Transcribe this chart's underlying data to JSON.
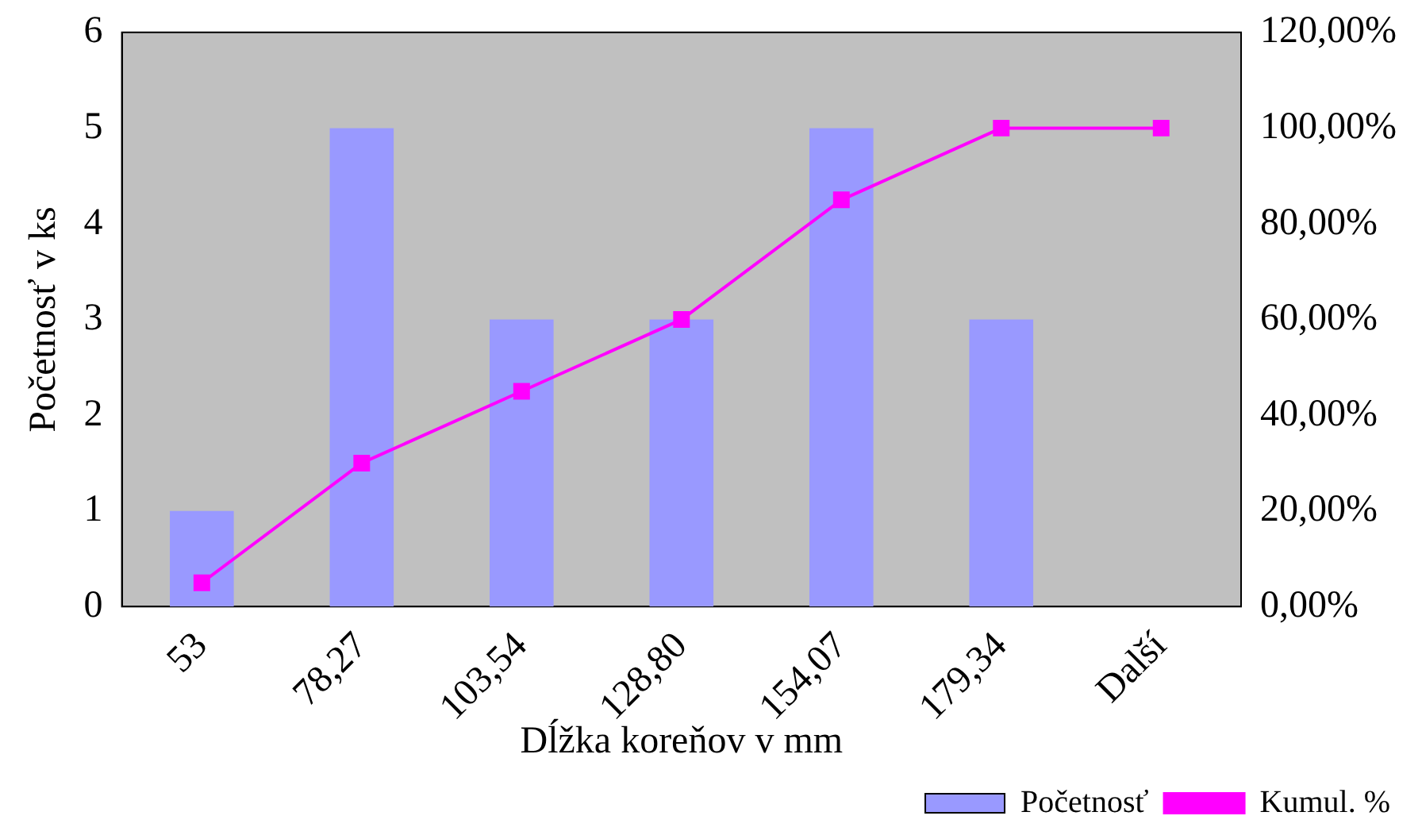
{
  "chart_data": {
    "type": "bar",
    "xlabel": "Dĺžka koreňov v mm",
    "ylabel": "Početnosť v ks",
    "categories": [
      "53",
      "78,27",
      "103,54",
      "128,80",
      "154,07",
      "179,34",
      "Další"
    ],
    "series": [
      {
        "name": "Početnosť",
        "color": "#9999ff",
        "values": [
          1,
          5,
          3,
          3,
          5,
          3,
          0
        ]
      },
      {
        "name": "Kumul. %",
        "type": "line",
        "axis": "y2",
        "color": "#ff00ff",
        "marker": "square",
        "values": [
          5,
          30,
          45,
          60,
          85,
          100,
          100
        ]
      }
    ],
    "ylim": [
      0,
      6
    ],
    "yticks": [
      0,
      1,
      2,
      3,
      4,
      5,
      6
    ],
    "y2lim": [
      0,
      120
    ],
    "y2ticks": [
      {
        "value": 0,
        "label": "0,00%"
      },
      {
        "value": 20,
        "label": "20,00%"
      },
      {
        "value": 40,
        "label": "40,00%"
      },
      {
        "value": 60,
        "label": "60,00%"
      },
      {
        "value": 80,
        "label": "80,00%"
      },
      {
        "value": 100,
        "label": "100,00%"
      },
      {
        "value": 120,
        "label": "120,00%"
      }
    ],
    "grid": false,
    "legend": "bottom right"
  }
}
